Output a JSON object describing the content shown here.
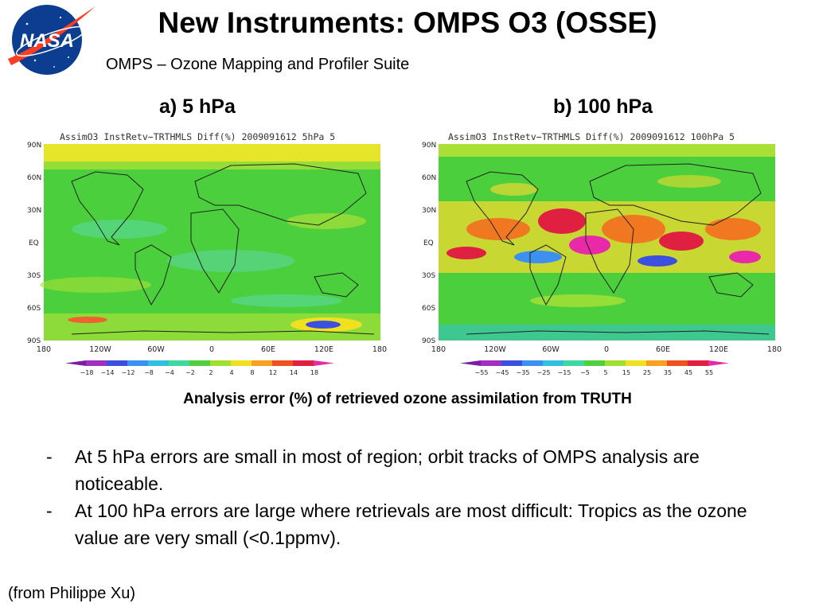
{
  "title": "New Instruments: OMPS O3 (OSSE)",
  "subtitle": "OMPS – Ozone Mapping and Profiler Suite",
  "logo": {
    "text": "NASA",
    "colors": {
      "circle": "#0b3d91",
      "swoosh": "#fc3d21"
    }
  },
  "panels": [
    {
      "label": "a) 5 hPa",
      "plot_title": "AssimO3  InstRetv−TRTHMLS  Diff(%)  2009091612  5hPa  5",
      "lat_ticks": [
        "90N",
        "60N",
        "30N",
        "EQ",
        "30S",
        "60S",
        "90S"
      ],
      "lon_ticks": [
        "180",
        "120W",
        "60W",
        "0",
        "60E",
        "120E",
        "180"
      ],
      "colorbar_ticks": [
        "−18",
        "−14",
        "−12",
        "−8",
        "−4",
        "−2",
        "2",
        "4",
        "8",
        "12",
        "14",
        "18"
      ]
    },
    {
      "label": "b) 100 hPa",
      "plot_title": "AssimO3  InstRetv−TRTHMLS  Diff(%)  2009091612  100hPa  5",
      "lat_ticks": [
        "90N",
        "60N",
        "30N",
        "EQ",
        "30S",
        "60S",
        "90S"
      ],
      "lon_ticks": [
        "180",
        "120W",
        "60W",
        "0",
        "60E",
        "120E",
        "180"
      ],
      "colorbar_ticks": [
        "−55",
        "−45",
        "−35",
        "−25",
        "−15",
        "−5",
        "5",
        "15",
        "25",
        "35",
        "45",
        "55"
      ]
    }
  ],
  "colorbar_colors": [
    "#7a1fa0",
    "#a030c0",
    "#3c50e0",
    "#3c90f0",
    "#30c0e0",
    "#40d8a0",
    "#50d040",
    "#a0e030",
    "#f0e020",
    "#f8a020",
    "#f05020",
    "#e02040",
    "#e82aa8"
  ],
  "caption": "Analysis error (%) of retrieved ozone assimilation from TRUTH",
  "bullets": [
    {
      "dash": "-",
      "text": "At 5 hPa errors are small in most of region;  orbit tracks of OMPS analysis are noticeable."
    },
    {
      "dash": "-",
      "text": "At 100 hPa errors are large where retrievals are most difficult: Tropics as the ozone value are very small (<0.1ppmv)."
    }
  ],
  "credit": "(from Philippe Xu)"
}
